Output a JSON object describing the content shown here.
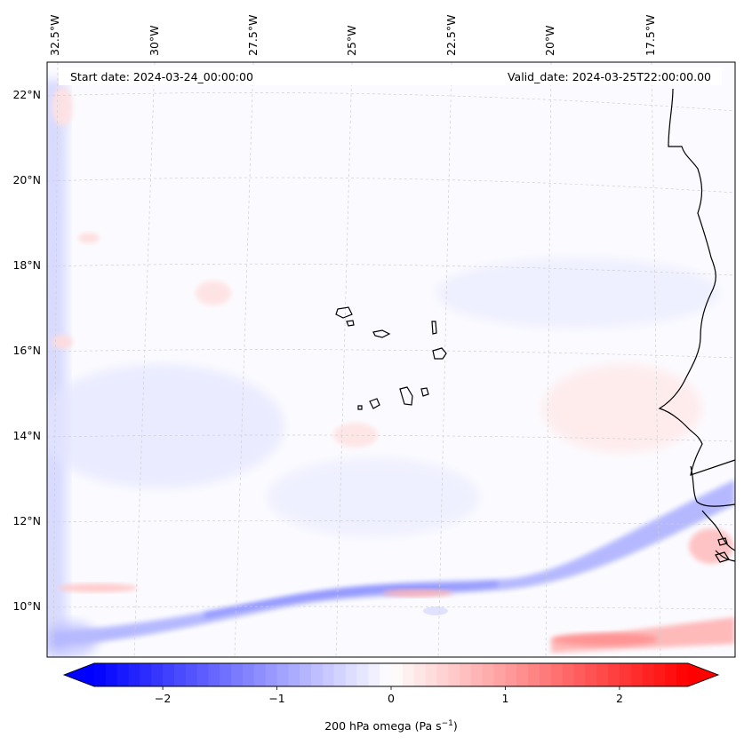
{
  "header": {
    "start_date": "Start date: 2024-03-24_00:00:00",
    "valid_date": "Valid_date: 2024-03-25T22:00:00.00"
  },
  "longitude_labels": [
    "32.5°W",
    "30°W",
    "27.5°W",
    "25°W",
    "22.5°W",
    "20°W",
    "17.5°W"
  ],
  "latitude_labels": [
    "22°N",
    "20°N",
    "18°N",
    "16°N",
    "14°N",
    "12°N",
    "10°N"
  ],
  "colorbar": {
    "label": "200 hPa omega (Pa s",
    "label_exponent": "−1",
    "label_close": ")",
    "tick_labels": [
      "−2",
      "−1",
      "0",
      "1",
      "2"
    ],
    "range": [
      -2.6,
      2.6
    ],
    "colormap": "bwr",
    "low_color": "#0000ff",
    "mid_color": "#ffffff",
    "high_color": "#ff0000",
    "extend": "both"
  },
  "map": {
    "extent": {
      "lon": [
        -33,
        -15.5
      ],
      "lat": [
        9,
        22.7
      ]
    },
    "field": "200 hPa omega",
    "gridlines": true,
    "coastline_color": "#000000"
  }
}
